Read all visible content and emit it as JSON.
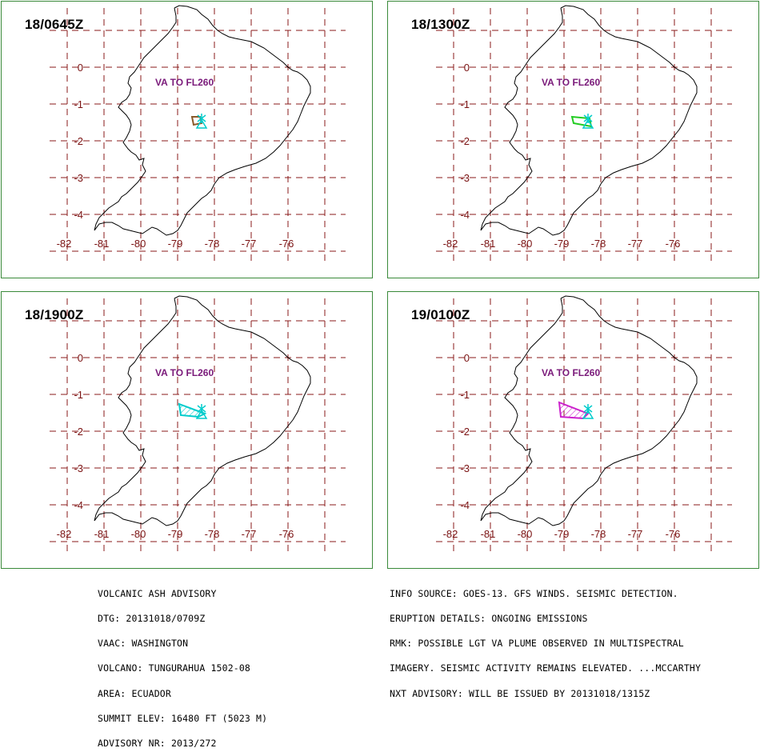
{
  "panels": [
    {
      "title": "18/0645Z",
      "va_label": "VA TO FL260",
      "plume_color": "#8a5a2a",
      "plume_hatch": false
    },
    {
      "title": "18/1300Z",
      "va_label": "VA TO FL260",
      "plume_color": "#22cc22",
      "plume_hatch": false
    },
    {
      "title": "18/1900Z",
      "va_label": "VA TO FL260",
      "plume_color": "#00cccc",
      "plume_hatch": true
    },
    {
      "title": "19/0100Z",
      "va_label": "VA TO FL260",
      "plume_color": "#cc22cc",
      "plume_hatch": true
    }
  ],
  "axes": {
    "lat_ticks": [
      "0",
      "-1",
      "-2",
      "-3",
      "-4"
    ],
    "lon_ticks": [
      "-82",
      "-81",
      "-80",
      "-79",
      "-78",
      "-77",
      "-76"
    ]
  },
  "colors": {
    "grid": "#8a1a1a",
    "panel_border": "#3a8a3a",
    "tick_text": "#7a1212",
    "volcano_marker": "#00cccc",
    "va_label": "#7a1a7a"
  },
  "advisory_left": [
    "VOLCANIC ASH ADVISORY",
    "DTG: 20131018/0709Z",
    "VAAC: WASHINGTON",
    "VOLCANO: TUNGURAHUA 1502-08",
    "AREA: ECUADOR",
    "SUMMIT ELEV: 16480 FT (5023 M)",
    "ADVISORY NR: 2013/272"
  ],
  "advisory_right": [
    "INFO SOURCE: GOES-13. GFS WINDS. SEISMIC DETECTION.",
    "ERUPTION DETAILS: ONGOING EMISSIONS",
    "RMK: POSSIBLE LGT VA PLUME OBSERVED IN MULTISPECTRAL",
    "IMAGERY. SEISMIC ACTIVITY REMAINS ELEVATED. ...MCCARTHY",
    "NXT ADVISORY: WILL BE ISSUED BY 20131018/1315Z"
  ]
}
